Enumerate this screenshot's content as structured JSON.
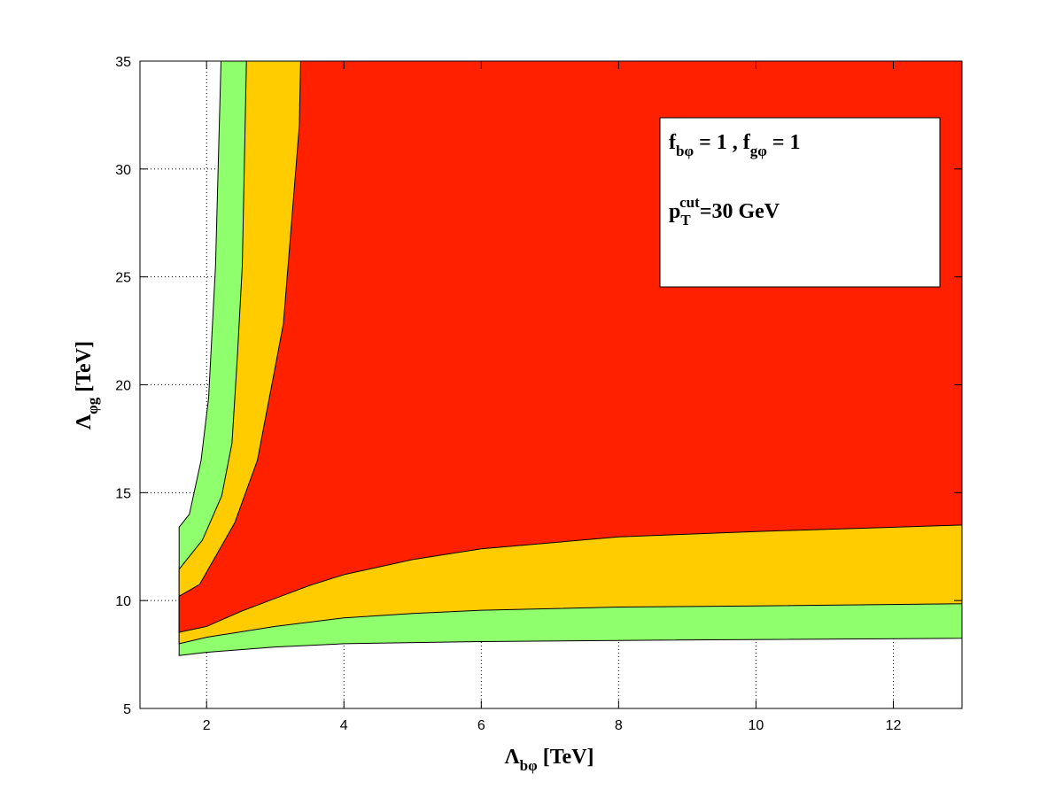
{
  "chart_data": {
    "type": "filled-contour",
    "xlabel": [
      "Λ",
      "bφ",
      " [TeV]"
    ],
    "ylabel": [
      "Λ",
      "φg",
      " [TeV]"
    ],
    "annotation_lines": [
      [
        "f",
        "bφ",
        " = 1 , f",
        "gφ",
        " = 1"
      ],
      [
        "p",
        "T",
        "cut",
        "=30 GeV"
      ]
    ],
    "xlim": [
      1.03,
      13
    ],
    "xticks": [
      2,
      4,
      6,
      8,
      10,
      12
    ],
    "ylim": [
      5,
      35
    ],
    "yticks": [
      5,
      10,
      15,
      20,
      25,
      30,
      35
    ],
    "grid": true,
    "series": [
      {
        "color": "#8fff6e",
        "x": [
          1.6,
          2,
          3,
          4,
          6,
          8,
          13,
          13,
          2.21,
          2.13,
          2.03,
          1.92,
          1.75,
          1.6
        ],
        "y": [
          7.45,
          7.6,
          7.85,
          8.0,
          8.1,
          8.15,
          8.25,
          35,
          35,
          25.5,
          19.4,
          16.5,
          14.0,
          13.4
        ]
      },
      {
        "color": "#ffcc00",
        "x": [
          1.6,
          2,
          2.6,
          3,
          4,
          5,
          6,
          8,
          10,
          13,
          13,
          2.58,
          2.52,
          2.45,
          2.37,
          2.22,
          1.94,
          1.6
        ],
        "y": [
          8.0,
          8.3,
          8.6,
          8.8,
          9.2,
          9.4,
          9.55,
          9.7,
          9.75,
          9.85,
          35,
          35,
          25.5,
          21.4,
          17.3,
          14.85,
          12.8,
          11.45
        ]
      },
      {
        "color": "#ff2000",
        "x": [
          1.6,
          2,
          2.5,
          3,
          3.5,
          4,
          5,
          6,
          8,
          10,
          13,
          13,
          3.37,
          3.35,
          3.12,
          2.95,
          2.74,
          2.41,
          1.9,
          1.6
        ],
        "y": [
          8.53,
          8.8,
          9.5,
          10.1,
          10.7,
          11.2,
          11.9,
          12.4,
          12.95,
          13.2,
          13.5,
          35,
          35,
          32,
          22.85,
          20,
          16.5,
          13.6,
          10.75,
          10.2
        ]
      }
    ]
  }
}
